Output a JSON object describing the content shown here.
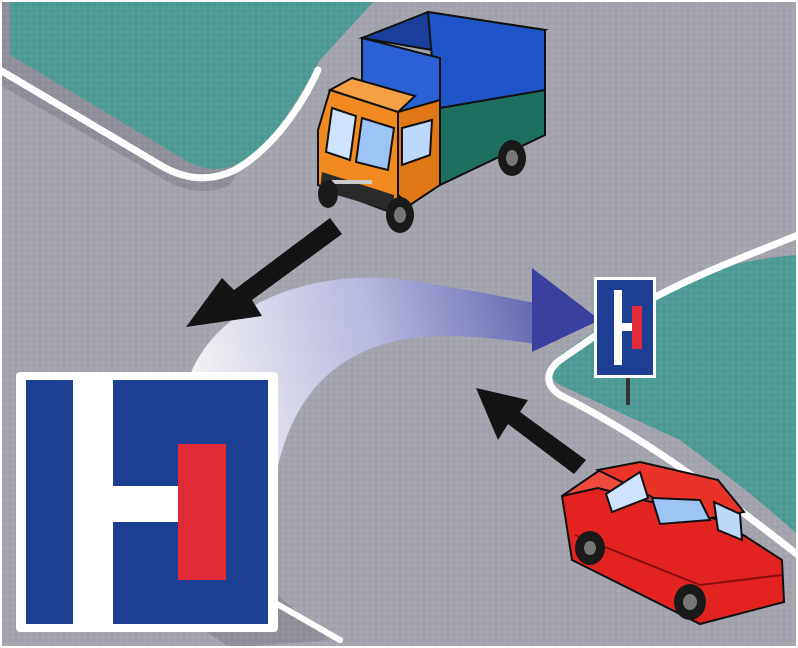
{
  "scene": {
    "roads": "crossroads",
    "colors": {
      "road": "#a3a4ad",
      "grass": "#4e9a94",
      "curb": "#ffffff",
      "sign_blue": "#1c3f94",
      "sign_red": "#e02a36",
      "truck_cab": "#f08a21",
      "truck_box": "#1f55c8",
      "truck_base": "#1d6f60",
      "car_body": "#e3231f",
      "arrow_dark": "#141414",
      "arrow_blue": "#3b3f9e"
    },
    "icons": {
      "sign_large": "dead-end-road-sign-icon",
      "sign_small": "dead-end-road-sign-icon",
      "truck": "truck-icon",
      "car": "car-icon",
      "truck_arrow": "straight-arrow-icon",
      "car_arrow": "straight-arrow-icon",
      "curved_arrow": "curved-arrow-icon"
    }
  }
}
